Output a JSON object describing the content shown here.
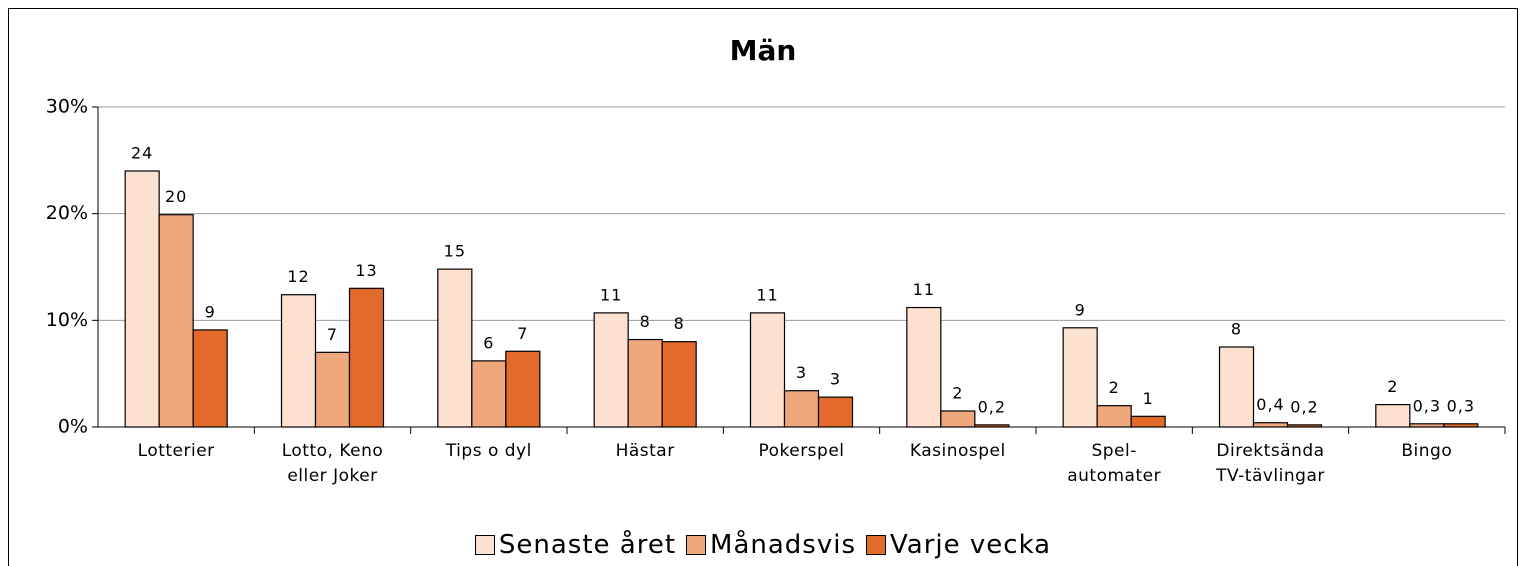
{
  "chart_data": {
    "type": "bar",
    "title": "Män",
    "categories": [
      "Lotterier",
      "Lotto, Keno eller Joker",
      "Tips o dyl",
      "Hästar",
      "Pokerspel",
      "Kasinospel",
      "Spel-automater",
      "Direktsända TV-tävlingar",
      "Bingo"
    ],
    "series": [
      {
        "name": "Senaste året",
        "color": "#fce0d0",
        "values": [
          24.0,
          12.4,
          14.8,
          10.7,
          10.7,
          11.2,
          9.3,
          7.5,
          2.1
        ],
        "value_labels": [
          "24",
          "12",
          "15",
          "11",
          "11",
          "11",
          "9",
          "8",
          "2"
        ]
      },
      {
        "name": "Månadsvis",
        "color": "#f0a77c",
        "values": [
          19.9,
          7.0,
          6.2,
          8.2,
          3.4,
          1.5,
          2.0,
          0.4,
          0.3
        ],
        "value_labels": [
          "20",
          "7",
          "6",
          "8",
          "3",
          "2",
          "2",
          "0,4",
          "0,3"
        ]
      },
      {
        "name": "Varje vecka",
        "color": "#e26a2a",
        "values": [
          9.1,
          13.0,
          7.1,
          8.0,
          2.8,
          0.2,
          1.0,
          0.2,
          0.3
        ],
        "value_labels": [
          "9",
          "13",
          "7",
          "8",
          "3",
          "0,2",
          "1",
          "0,2",
          "0,3"
        ]
      }
    ],
    "ylim": [
      0,
      30
    ],
    "yticks": [
      {
        "value": 0,
        "label": "0%"
      },
      {
        "value": 10,
        "label": "10%"
      },
      {
        "value": 20,
        "label": "20%"
      },
      {
        "value": 30,
        "label": "30%"
      }
    ],
    "grid": true,
    "legend": "bottom"
  }
}
